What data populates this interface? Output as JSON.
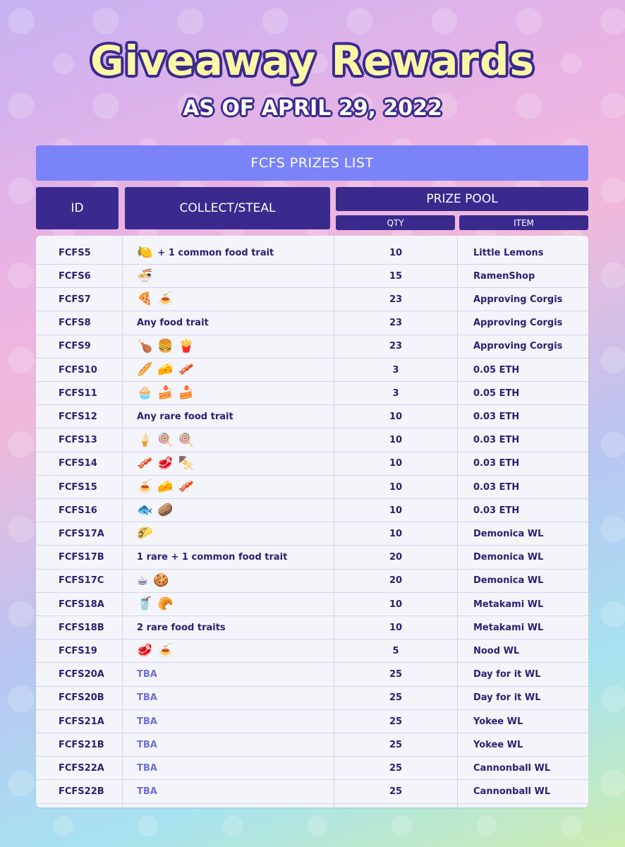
{
  "title": "Giveaway Rewards",
  "subtitle": "AS OF APRIL 29, 2022",
  "list_title": "FCFS PRIZES LIST",
  "headers": {
    "id": "ID",
    "collect": "COLLECT/STEAL",
    "prize_pool": "PRIZE POOL",
    "qty": "QTY",
    "item": "ITEM"
  },
  "rows": [
    {
      "id": "FCFS5",
      "icons": [
        "🍋"
      ],
      "text": "+ 1 common food trait",
      "qty": "10",
      "item": "Little Lemons"
    },
    {
      "id": "FCFS6",
      "icons": [
        "🍜"
      ],
      "text": "",
      "qty": "15",
      "item": "RamenShop"
    },
    {
      "id": "FCFS7",
      "icons": [
        "🍕",
        "🍝"
      ],
      "text": "",
      "qty": "23",
      "item": "Approving Corgis"
    },
    {
      "id": "FCFS8",
      "icons": [],
      "text": "Any food trait",
      "qty": "23",
      "item": "Approving Corgis"
    },
    {
      "id": "FCFS9",
      "icons": [
        "🍗",
        "🍔",
        "🍟"
      ],
      "text": "",
      "qty": "23",
      "item": "Approving Corgis"
    },
    {
      "id": "FCFS10",
      "icons": [
        "🥖",
        "🧀",
        "🥓"
      ],
      "text": "",
      "qty": "3",
      "item": "0.05 ETH"
    },
    {
      "id": "FCFS11",
      "icons": [
        "🧁",
        "🍰",
        "🍰"
      ],
      "text": "",
      "qty": "3",
      "item": "0.05 ETH"
    },
    {
      "id": "FCFS12",
      "icons": [],
      "text": "Any rare food trait",
      "qty": "10",
      "item": "0.03 ETH"
    },
    {
      "id": "FCFS13",
      "icons": [
        "🍦",
        "🍭",
        "🍭"
      ],
      "text": "",
      "qty": "10",
      "item": "0.03 ETH"
    },
    {
      "id": "FCFS14",
      "icons": [
        "🥓",
        "🥩",
        "🍢"
      ],
      "text": "",
      "qty": "10",
      "item": "0.03 ETH"
    },
    {
      "id": "FCFS15",
      "icons": [
        "🍝",
        "🧀",
        "🥓"
      ],
      "text": "",
      "qty": "10",
      "item": "0.03 ETH"
    },
    {
      "id": "FCFS16",
      "icons": [
        "🐟",
        "🥔"
      ],
      "text": "",
      "qty": "10",
      "item": "0.03 ETH"
    },
    {
      "id": "FCFS17A",
      "icons": [
        "🌮"
      ],
      "text": "",
      "qty": "10",
      "item": "Demonica WL"
    },
    {
      "id": "FCFS17B",
      "icons": [],
      "text": "1 rare + 1 common food trait",
      "qty": "20",
      "item": "Demonica WL"
    },
    {
      "id": "FCFS17C",
      "icons": [
        "☕",
        "🍪"
      ],
      "text": "",
      "qty": "20",
      "item": "Demonica WL"
    },
    {
      "id": "FCFS18A",
      "icons": [
        "🥤",
        "🥐"
      ],
      "text": "",
      "qty": "10",
      "item": "Metakami WL"
    },
    {
      "id": "FCFS18B",
      "icons": [],
      "text": "2 rare food traits",
      "qty": "10",
      "item": "Metakami WL"
    },
    {
      "id": "FCFS19",
      "icons": [
        "🥩",
        "🍝"
      ],
      "text": "",
      "qty": "5",
      "item": "Nood WL"
    },
    {
      "id": "FCFS20A",
      "icons": [],
      "text": "TBA",
      "tba": true,
      "qty": "25",
      "item": "Day for it WL"
    },
    {
      "id": "FCFS20B",
      "icons": [],
      "text": "TBA",
      "tba": true,
      "qty": "25",
      "item": "Day for it WL"
    },
    {
      "id": "FCFS21A",
      "icons": [],
      "text": "TBA",
      "tba": true,
      "qty": "25",
      "item": "Yokee WL"
    },
    {
      "id": "FCFS21B",
      "icons": [],
      "text": "TBA",
      "tba": true,
      "qty": "25",
      "item": "Yokee WL"
    },
    {
      "id": "FCFS22A",
      "icons": [],
      "text": "TBA",
      "tba": true,
      "qty": "25",
      "item": "Cannonball WL"
    },
    {
      "id": "FCFS22B",
      "icons": [],
      "text": "TBA",
      "tba": true,
      "qty": "25",
      "item": "Cannonball WL"
    }
  ],
  "colors": {
    "header_bg": "#3a2a8e",
    "banner_bg": "#7a83f7",
    "title_fill": "#fbf7a4",
    "tba_text": "#6d6fd8"
  }
}
